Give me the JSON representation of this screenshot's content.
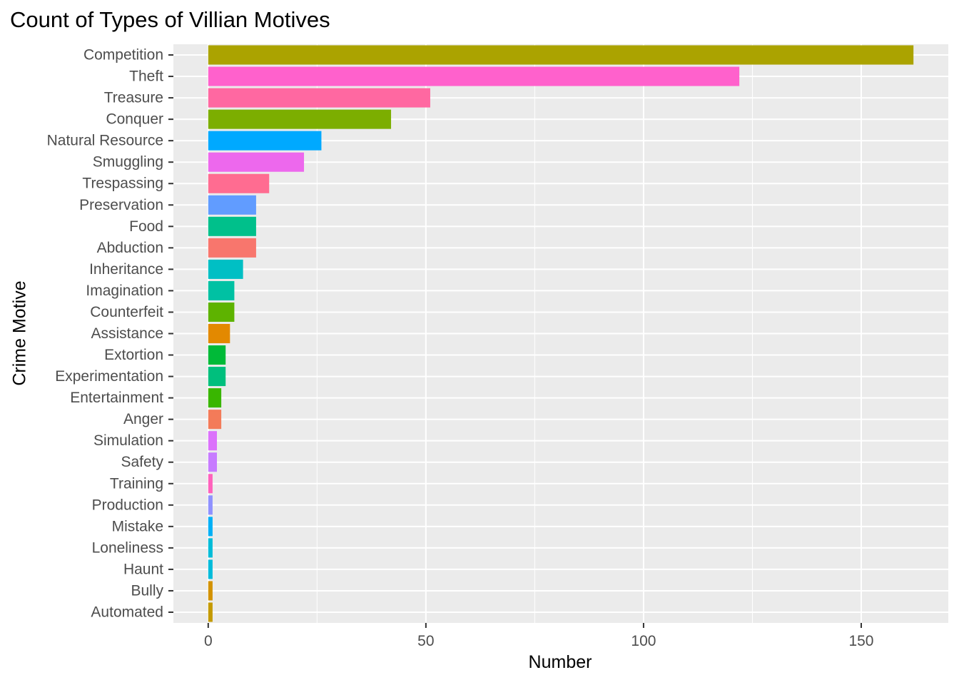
{
  "chart_data": {
    "type": "bar",
    "orientation": "horizontal",
    "title": "Count of Types of Villian Motives",
    "xlabel": "Number",
    "ylabel": "Crime Motive",
    "xlim": [
      -8,
      170
    ],
    "x_ticks": [
      0,
      50,
      100,
      150
    ],
    "grid": true,
    "legend": "none",
    "categories": [
      "Competition",
      "Theft",
      "Treasure",
      "Conquer",
      "Natural Resource",
      "Smuggling",
      "Trespassing",
      "Preservation",
      "Food",
      "Abduction",
      "Inheritance",
      "Imagination",
      "Counterfeit",
      "Assistance",
      "Extortion",
      "Experimentation",
      "Entertainment",
      "Anger",
      "Simulation",
      "Safety",
      "Training",
      "Production",
      "Mistake",
      "Loneliness",
      "Haunt",
      "Bully",
      "Automated"
    ],
    "values": [
      162,
      122,
      51,
      42,
      26,
      22,
      14,
      11,
      11,
      11,
      8,
      6,
      6,
      5,
      4,
      4,
      3,
      3,
      2,
      2,
      1,
      1,
      1,
      1,
      1,
      1,
      1
    ],
    "colors": [
      "#ABA300",
      "#FF61CC",
      "#FF68A1",
      "#7CAE00",
      "#00A9FF",
      "#ED68ED",
      "#FF6C91",
      "#619CFF",
      "#00C08B",
      "#F8766D",
      "#00BFC4",
      "#00C1A3",
      "#5EB300",
      "#E38900",
      "#00BA38",
      "#00BF7D",
      "#39B600",
      "#F37B59",
      "#DB72FB",
      "#C77CFF",
      "#FF62BC",
      "#8F91FF",
      "#00B0F6",
      "#00BCD8",
      "#00BBDA",
      "#D39200",
      "#C49A00"
    ]
  }
}
